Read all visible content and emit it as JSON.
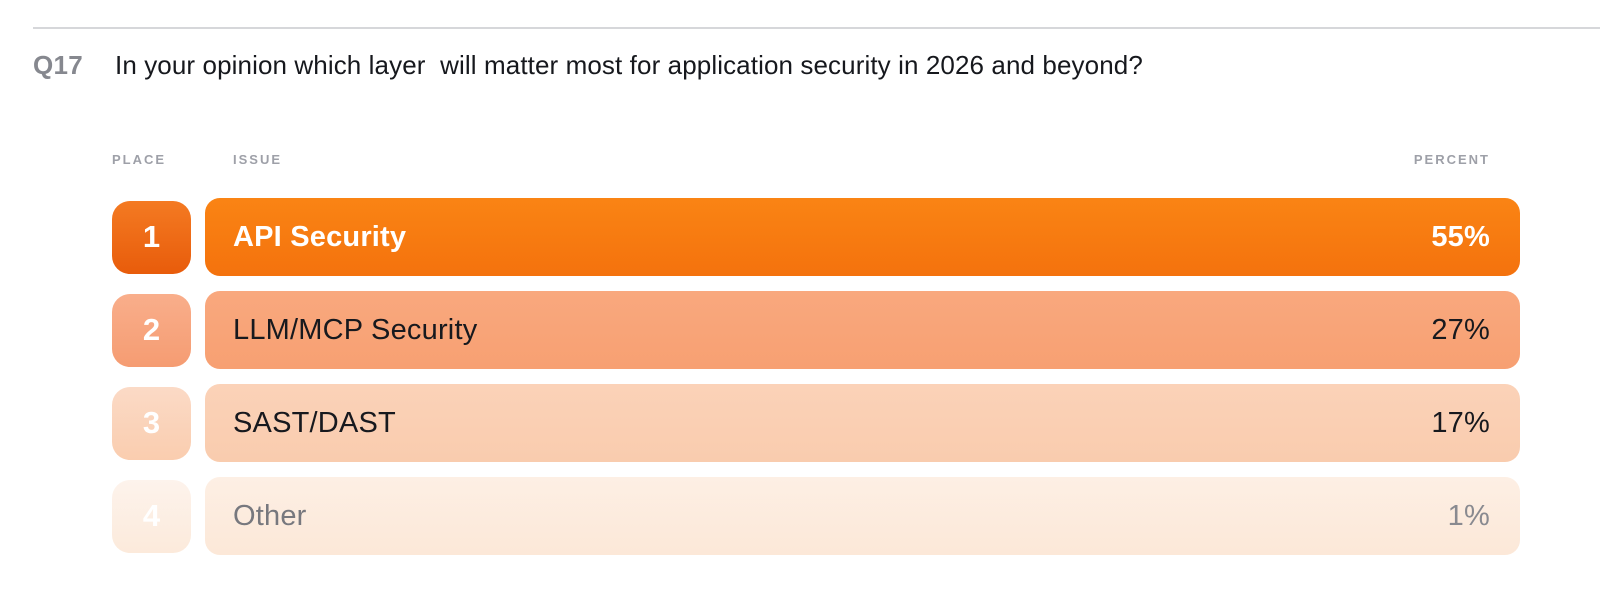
{
  "question": {
    "number": "Q17",
    "text": "In your opinion which layer  will matter most for application security in 2026 and beyond?"
  },
  "table": {
    "headers": {
      "place": "PLACE",
      "issue": "ISSUE",
      "percent": "PERCENT"
    },
    "rows": [
      {
        "place": "1",
        "issue": "API Security",
        "percent": "55%",
        "emphasis": true,
        "colors": {
          "badge_top": "#f47a22",
          "badge_bottom": "#e85c0b",
          "bar_top": "#fa8414",
          "bar_bottom": "#f4720d",
          "label": "#ffffff",
          "percent": "#ffffff"
        }
      },
      {
        "place": "2",
        "issue": "LLM/MCP Security",
        "percent": "27%",
        "emphasis": false,
        "colors": {
          "badge_top": "#f9ae8b",
          "badge_bottom": "#f59c72",
          "bar_top": "#f9a87e",
          "bar_bottom": "#f7a072",
          "label": "#17191e",
          "percent": "#17191e"
        }
      },
      {
        "place": "3",
        "issue": "SAST/DAST",
        "percent": "17%",
        "emphasis": false,
        "colors": {
          "badge_top": "#fbdac6",
          "badge_bottom": "#facdaf",
          "bar_top": "#fbd2b8",
          "bar_bottom": "#f9ccae",
          "label": "#17191e",
          "percent": "#17191e"
        }
      },
      {
        "place": "4",
        "issue": "Other",
        "percent": "1%",
        "emphasis": false,
        "colors": {
          "badge_top": "#fdf3ec",
          "badge_bottom": "#fceadb",
          "bar_top": "#fdefe4",
          "bar_bottom": "#fce8d8",
          "label": "#77787e",
          "percent": "#898a90"
        }
      }
    ]
  },
  "theme": {
    "background": "#ffffff",
    "divider": "#d6d7da",
    "question_number_color": "#86888f",
    "question_text_color": "#16181d",
    "header_color": "#9ea0a8",
    "accent_orange": "#f97b10"
  },
  "chart_data": {
    "type": "bar",
    "title": "Q17 In your opinion which layer will matter most for application security in 2026 and beyond?",
    "columns": [
      "PLACE",
      "ISSUE",
      "PERCENT"
    ],
    "categories": [
      "API Security",
      "LLM/MCP Security",
      "SAST/DAST",
      "Other"
    ],
    "values": [
      55,
      27,
      17,
      1
    ],
    "places": [
      1,
      2,
      3,
      4
    ],
    "value_format": "percent",
    "ylim": [
      0,
      100
    ],
    "legend": "none",
    "grid": false,
    "layout_hint": "ranked full-width rows; color intensity encodes rank"
  }
}
